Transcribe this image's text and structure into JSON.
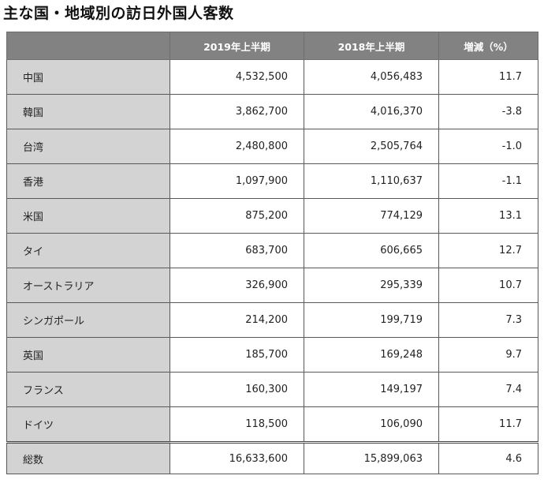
{
  "title": "主な国・地域別の訪日外国人客数",
  "table": {
    "headers": [
      "",
      "2019年上半期",
      "2018年上半期",
      "増減（%）"
    ],
    "rows": [
      {
        "name": "中国",
        "y2019": "4,532,500",
        "y2018": "4,056,483",
        "change": "11.7"
      },
      {
        "name": "韓国",
        "y2019": "3,862,700",
        "y2018": "4,016,370",
        "change": "-3.8"
      },
      {
        "name": "台湾",
        "y2019": "2,480,800",
        "y2018": "2,505,764",
        "change": "-1.0"
      },
      {
        "name": "香港",
        "y2019": "1,097,900",
        "y2018": "1,110,637",
        "change": "-1.1"
      },
      {
        "name": "米国",
        "y2019": "875,200",
        "y2018": "774,129",
        "change": "13.1"
      },
      {
        "name": "タイ",
        "y2019": "683,700",
        "y2018": "606,665",
        "change": "12.7"
      },
      {
        "name": "オーストラリア",
        "y2019": "326,900",
        "y2018": "295,339",
        "change": "10.7"
      },
      {
        "name": "シンガポール",
        "y2019": "214,200",
        "y2018": "199,719",
        "change": "7.3"
      },
      {
        "name": "英国",
        "y2019": "185,700",
        "y2018": "169,248",
        "change": "9.7"
      },
      {
        "name": "フランス",
        "y2019": "160,300",
        "y2018": "149,197",
        "change": "7.4"
      },
      {
        "name": "ドイツ",
        "y2019": "118,500",
        "y2018": "106,090",
        "change": "11.7"
      }
    ],
    "total": {
      "name": "総数",
      "y2019": "16,633,600",
      "y2018": "15,899,063",
      "change": "4.6"
    }
  }
}
